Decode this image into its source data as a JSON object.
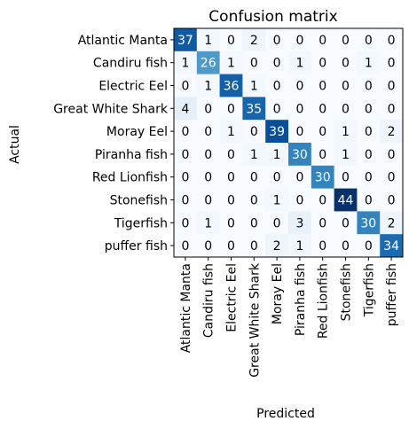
{
  "chart_data": {
    "type": "heatmap",
    "title": "Confusion matrix",
    "xlabel": "Predicted",
    "ylabel": "Actual",
    "rows": [
      "Atlantic Manta",
      "Candiru fish",
      "Electric Eel",
      "Great White Shark",
      "Moray Eel",
      "Piranha fish",
      "Red Lionfish",
      "Stonefish",
      "Tigerfish",
      "puffer fish"
    ],
    "columns": [
      "Atlantic Manta",
      "Candiru fish",
      "Electric Eel",
      "Great White Shark",
      "Moray Eel",
      "Piranha fish",
      "Red Lionfish",
      "Stonefish",
      "Tigerfish",
      "puffer fish"
    ],
    "values": [
      [
        37,
        1,
        0,
        2,
        0,
        0,
        0,
        0,
        0,
        0
      ],
      [
        1,
        26,
        1,
        0,
        0,
        1,
        0,
        0,
        1,
        0
      ],
      [
        0,
        1,
        36,
        1,
        0,
        0,
        0,
        0,
        0,
        0
      ],
      [
        4,
        0,
        0,
        35,
        0,
        0,
        0,
        0,
        0,
        0
      ],
      [
        0,
        0,
        1,
        0,
        39,
        0,
        0,
        1,
        0,
        2
      ],
      [
        0,
        0,
        0,
        1,
        1,
        30,
        0,
        1,
        0,
        0
      ],
      [
        0,
        0,
        0,
        0,
        0,
        0,
        30,
        0,
        0,
        0
      ],
      [
        0,
        0,
        0,
        0,
        1,
        0,
        0,
        44,
        0,
        0
      ],
      [
        0,
        1,
        0,
        0,
        0,
        3,
        0,
        0,
        30,
        2
      ],
      [
        0,
        0,
        0,
        0,
        2,
        1,
        0,
        0,
        0,
        34
      ]
    ],
    "colormap": "Blues",
    "color_low": "#f7fbff",
    "color_high": "#08306b",
    "grid": false
  }
}
